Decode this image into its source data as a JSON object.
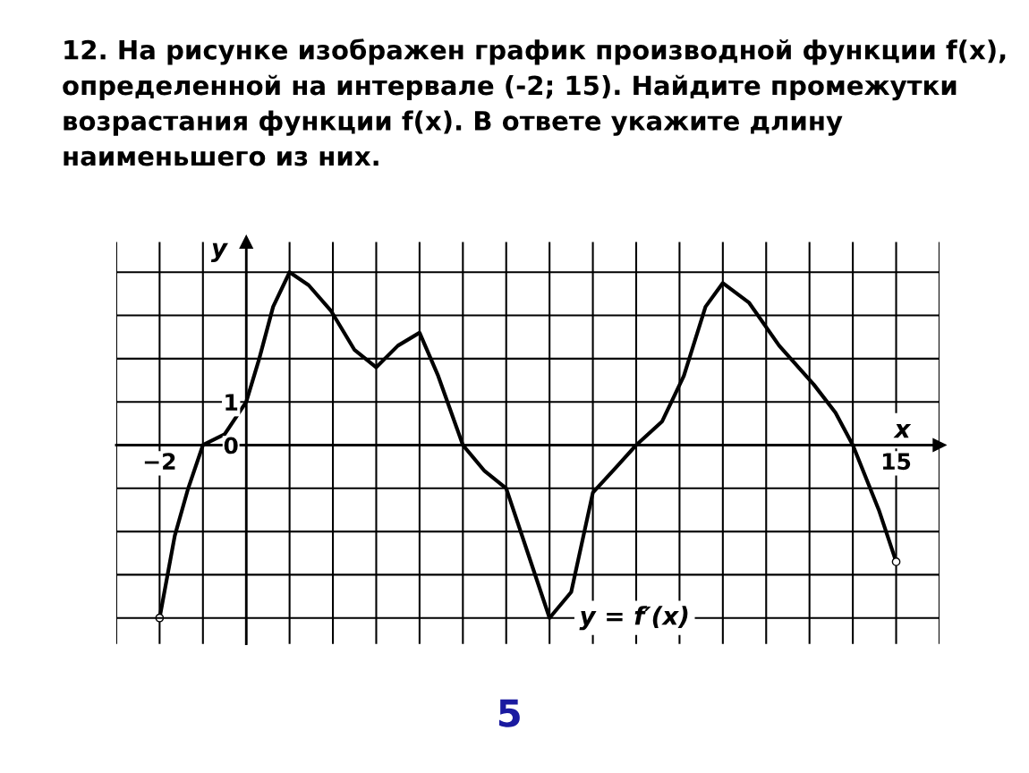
{
  "chart_data": {
    "type": "line",
    "title": "12. На рисунке изображен график производной функции f(x), определенной на интервале (-2; 15). Найдите промежутки возрастания функции f(x). В ответе укажите длину наименьшего из них.",
    "xlabel": "x",
    "ylabel": "y",
    "x": [
      -2,
      -1.65,
      -1.34,
      -1,
      -0.5,
      0,
      0.3,
      0.62,
      1,
      1.44,
      1.96,
      2.5,
      3,
      3.5,
      4,
      4.43,
      5,
      5.5,
      6,
      6.5,
      7,
      7.5,
      8,
      8.55,
      9,
      9.6,
      10.1,
      10.6,
      11,
      11.6,
      12.3,
      13.1,
      13.6,
      14,
      14.6,
      15
    ],
    "series": [
      {
        "color": "#000000",
        "values": [
          -4,
          -2.1,
          -1.0,
          0,
          0.25,
          1,
          2,
          3.2,
          4,
          3.7,
          3.1,
          2.2,
          1.8,
          2.3,
          2.6,
          1.6,
          0,
          -0.6,
          -1,
          -2.5,
          -4,
          -3.4,
          -1.1,
          -0.5,
          0,
          0.55,
          1.6,
          3.2,
          3.75,
          3.3,
          2.3,
          1.4,
          0.75,
          0,
          -1.5,
          -2.7
        ]
      }
    ],
    "xlim": [
      -3,
      16
    ],
    "ylim": [
      -4.6,
      4.7
    ],
    "xticks": [
      {
        "value": -3,
        "label": null
      },
      {
        "value": -2,
        "label": "−2"
      },
      {
        "value": -1,
        "label": null
      },
      {
        "value": 0,
        "label": null
      },
      {
        "value": 1,
        "label": null
      },
      {
        "value": 2,
        "label": null
      },
      {
        "value": 3,
        "label": null
      },
      {
        "value": 4,
        "label": null
      },
      {
        "value": 5,
        "label": null
      },
      {
        "value": 6,
        "label": null
      },
      {
        "value": 7,
        "label": null
      },
      {
        "value": 8,
        "label": null
      },
      {
        "value": 9,
        "label": null
      },
      {
        "value": 10,
        "label": null
      },
      {
        "value": 11,
        "label": null
      },
      {
        "value": 12,
        "label": null
      },
      {
        "value": 13,
        "label": null
      },
      {
        "value": 14,
        "label": null
      },
      {
        "value": 15,
        "label": "15"
      },
      {
        "value": 16,
        "label": null
      }
    ],
    "yticks": [
      {
        "value": -4,
        "label": null
      },
      {
        "value": -3,
        "label": null
      },
      {
        "value": -2,
        "label": null
      },
      {
        "value": -1,
        "label": null
      },
      {
        "value": 0,
        "label": "0"
      },
      {
        "value": 1,
        "label": "1"
      },
      {
        "value": 2,
        "label": null
      },
      {
        "value": 3,
        "label": null
      },
      {
        "value": 4,
        "label": null
      }
    ],
    "grid": true,
    "marker": "none",
    "line_style": "solid",
    "annotations": [
      {
        "text": "y = f′(x)",
        "x": 7,
        "y": -4
      },
      "5"
    ]
  }
}
